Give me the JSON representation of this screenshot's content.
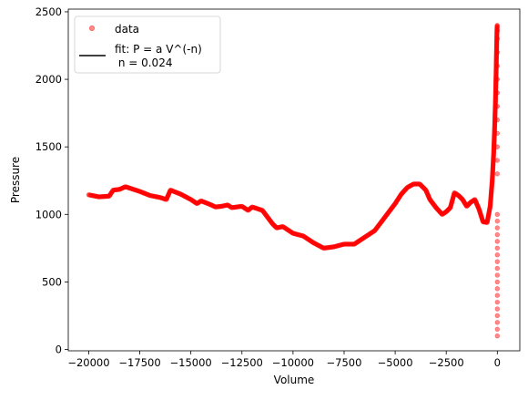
{
  "chart_data": {
    "type": "scatter",
    "title": "",
    "xlabel": "Volume",
    "ylabel": "Pressure",
    "xlim": [
      -21000,
      1100
    ],
    "ylim": [
      -10,
      2520
    ],
    "grid": false,
    "legend_position": "top-left",
    "x_ticks": [
      -20000,
      -17500,
      -15000,
      -12500,
      -10000,
      -7500,
      -5000,
      -2500,
      0
    ],
    "x_tick_labels": [
      "−20000",
      "−17500",
      "−15000",
      "−12500",
      "−10000",
      "−7500",
      "−5000",
      "−2500",
      "0"
    ],
    "y_ticks": [
      0,
      500,
      1000,
      1500,
      2000,
      2500
    ],
    "y_tick_labels": [
      "0",
      "500",
      "1000",
      "1500",
      "2000",
      "2500"
    ],
    "series": [
      {
        "name": "data",
        "kind": "markers",
        "color": "#ff0000",
        "alpha": 0.45,
        "dense_x": [
          -20000,
          -19500,
          -19000,
          -18800,
          -18500,
          -18200,
          -17500,
          -17000,
          -16500,
          -16200,
          -16000,
          -15500,
          -15000,
          -14700,
          -14500,
          -14000,
          -13800,
          -13500,
          -13200,
          -13000,
          -12500,
          -12200,
          -12000,
          -11500,
          -11000,
          -10800,
          -10500,
          -10000,
          -9500,
          -9000,
          -8500,
          -8000,
          -7500,
          -7000,
          -6500,
          -6000,
          -5500,
          -5000,
          -4700,
          -4400,
          -4100,
          -3800,
          -3500,
          -3300,
          -3000,
          -2700,
          -2500,
          -2300,
          -2100,
          -1900,
          -1700,
          -1500,
          -1300,
          -1100,
          -900,
          -700,
          -500,
          -350,
          -250,
          -180,
          -130,
          -90,
          -60,
          -40,
          -20,
          -10,
          -5
        ],
        "dense_y": [
          1145,
          1130,
          1135,
          1180,
          1185,
          1205,
          1170,
          1140,
          1125,
          1110,
          1180,
          1150,
          1110,
          1080,
          1100,
          1070,
          1055,
          1060,
          1070,
          1050,
          1060,
          1030,
          1055,
          1030,
          930,
          900,
          910,
          860,
          840,
          790,
          750,
          760,
          780,
          780,
          830,
          880,
          980,
          1080,
          1150,
          1200,
          1225,
          1225,
          1180,
          1110,
          1050,
          1000,
          1020,
          1050,
          1160,
          1140,
          1110,
          1060,
          1090,
          1110,
          1040,
          945,
          940,
          1060,
          1250,
          1450,
          1650,
          1850,
          2050,
          2200,
          2350,
          2390,
          2400
        ],
        "sparse_x": [
          0,
          0,
          0,
          0,
          0,
          0,
          0,
          0,
          0,
          0,
          0,
          0,
          0,
          0,
          0,
          0,
          0,
          0,
          0,
          0,
          0,
          0,
          0,
          0,
          0,
          0,
          0,
          0,
          0,
          0,
          0
        ],
        "sparse_y": [
          100,
          150,
          200,
          250,
          300,
          350,
          400,
          450,
          500,
          550,
          600,
          650,
          700,
          750,
          800,
          850,
          900,
          950,
          1000,
          1300,
          1400,
          1500,
          1600,
          1700,
          1800,
          1900,
          2000,
          2100,
          2200,
          2300,
          2360
        ]
      },
      {
        "name": "fit: P = a V^(-n)\n n = 0.024",
        "kind": "line",
        "color": "#000000"
      }
    ]
  },
  "legend": {
    "entry_data": "data",
    "entry_fit_line1": "fit: P = a V^(-n)",
    "entry_fit_line2": " n = 0.024"
  }
}
